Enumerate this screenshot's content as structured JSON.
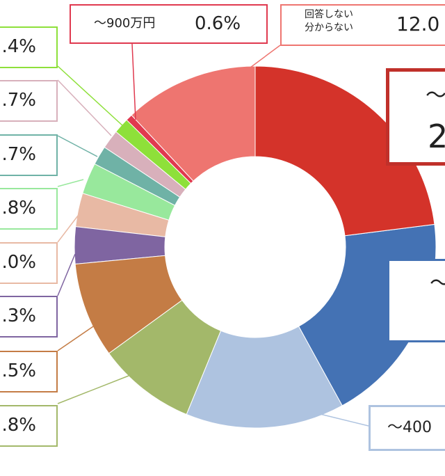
{
  "chart_data": {
    "type": "donut",
    "categories": [
      "～",
      "～",
      "～400",
      null,
      null,
      null,
      null,
      null,
      null,
      null,
      null,
      "～900万円",
      "回答しない\n分からない"
    ],
    "values": [
      23.0,
      19.0,
      14.2,
      8.8,
      8.5,
      3.3,
      3.0,
      2.8,
      1.7,
      1.7,
      1.4,
      0.6,
      12.0
    ],
    "value_labels": [
      "2",
      null,
      null,
      ".8%",
      ".5%",
      ".3%",
      ".0%",
      ".8%",
      ".7%",
      ".7%",
      ".4%",
      "0.6%",
      "12.0"
    ],
    "colors": [
      "#d4332a",
      "#4472b4",
      "#aec3e0",
      "#a3b86a",
      "#c47c45",
      "#7f65a1",
      "#e8b9a4",
      "#98e89c",
      "#6fb2a6",
      "#d8b0bb",
      "#8ee03a",
      "#e0394f",
      "#ee7570"
    ]
  }
}
